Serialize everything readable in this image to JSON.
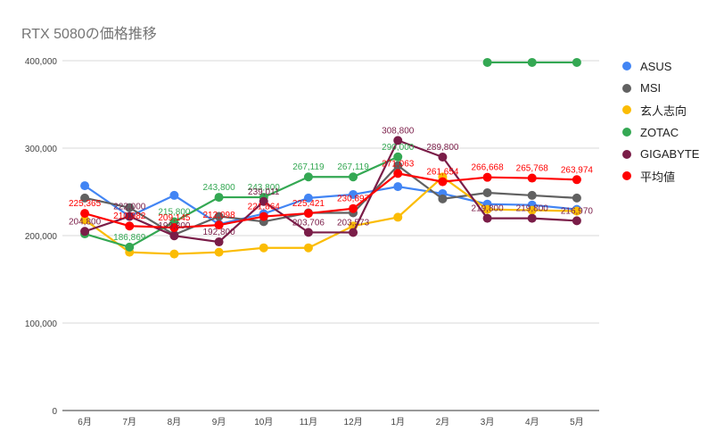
{
  "chart_data": {
    "type": "line",
    "title": "RTX 5080の価格推移",
    "xlabel": "",
    "ylabel": "",
    "categories": [
      "6月",
      "7月",
      "8月",
      "9月",
      "10月",
      "11月",
      "12月",
      "1月",
      "2月",
      "3月",
      "4月",
      "5月"
    ],
    "ylim": [
      0,
      400000
    ],
    "yticks": [
      0,
      100000,
      200000,
      300000,
      400000
    ],
    "ytick_labels": [
      "0",
      "100,000",
      "200,000",
      "300,000",
      "400,000"
    ],
    "grid": true,
    "legend_position": "right",
    "series": [
      {
        "name": "ASUS",
        "color": "#4285f4",
        "values": [
          257000,
          222000,
          246000,
          213000,
          225000,
          243000,
          247000,
          256000,
          248000,
          236000,
          235000,
          230000
        ],
        "labels": []
      },
      {
        "name": "MSI",
        "color": "#616161",
        "values": [
          243000,
          232000,
          201000,
          222000,
          216000,
          226000,
          226000,
          280000,
          242000,
          249000,
          246000,
          243000
        ],
        "labels": []
      },
      {
        "name": "玄人志向",
        "color": "#fbbc04",
        "values": [
          218000,
          181000,
          179000,
          181000,
          186000,
          186000,
          211000,
          221000,
          267000,
          230000,
          229000,
          228000
        ],
        "labels": []
      },
      {
        "name": "ZOTAC",
        "color": "#34a853",
        "values": [
          202000,
          186869,
          215800,
          243800,
          243800,
          267119,
          267119,
          290000,
          null,
          398000,
          398000,
          398000
        ],
        "labels": [
          "",
          "186,869",
          "215,800",
          "243,800",
          "243,800",
          "267,119",
          "267,119",
          "290,000",
          "",
          "",
          "",
          ""
        ]
      },
      {
        "name": "GIGABYTE",
        "color": "#7a1d48",
        "values": [
          204800,
          222000,
          199800,
          192800,
          239011,
          203706,
          203573,
          308800,
          289800,
          219800,
          219800,
          216970
        ],
        "labels": [
          "204,800",
          "222,000",
          "199,800",
          "192,800",
          "239,011",
          "203,706",
          "203,573",
          "308,800",
          "289,800",
          "219,800",
          "219,800",
          "216,970"
        ]
      },
      {
        "name": "平均値",
        "color": "#ff0000",
        "values": [
          225365,
          210982,
          209145,
          212098,
          221864,
          225421,
          230897,
          271063,
          261654,
          266668,
          265768,
          263974
        ],
        "labels": [
          "225,365",
          "210,982",
          "209,145",
          "212,098",
          "221,864",
          "225,421",
          "230,897",
          "271,063",
          "261,654",
          "266,668",
          "265,768",
          "263,974"
        ]
      }
    ]
  }
}
